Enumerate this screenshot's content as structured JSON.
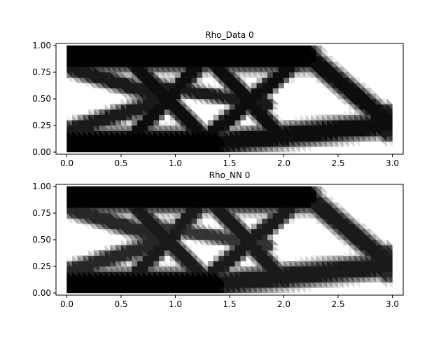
{
  "chart_data": [
    {
      "type": "heatmap",
      "title": "Rho_Data   0",
      "xlabel": "",
      "ylabel": "",
      "xlim": [
        -0.1,
        3.1
      ],
      "ylim": [
        -0.02,
        1.02
      ],
      "xticks": [
        0.0,
        0.5,
        1.0,
        1.5,
        2.0,
        2.5,
        3.0
      ],
      "xtick_labels": [
        "0.0",
        "0.5",
        "1.0",
        "1.5",
        "2.0",
        "2.5",
        "3.0"
      ],
      "yticks": [
        0.0,
        0.25,
        0.5,
        0.75,
        1.0
      ],
      "ytick_labels": [
        "0.00",
        "0.25",
        "0.50",
        "0.75",
        "1.00"
      ],
      "grid": false,
      "colormap": "gray_r",
      "domain": {
        "x": [
          0.0,
          3.0
        ],
        "y": [
          0.0,
          1.0
        ]
      },
      "density_members": [
        {
          "name": "top-chord",
          "from": [
            0.0,
            0.9
          ],
          "to": [
            2.2,
            0.9
          ],
          "width": 0.09,
          "density": 1.0
        },
        {
          "name": "bottom-chord",
          "from": [
            0.0,
            0.08
          ],
          "to": [
            1.35,
            0.08
          ],
          "width": 0.09,
          "density": 1.0
        },
        {
          "name": "bottom-right-chord",
          "from": [
            1.35,
            0.08
          ],
          "to": [
            2.95,
            0.26
          ],
          "width": 0.07,
          "density": 0.95
        },
        {
          "name": "left-top-diagonal",
          "from": [
            0.0,
            0.8
          ],
          "to": [
            0.95,
            0.5
          ],
          "width": 0.05,
          "density": 0.9
        },
        {
          "name": "left-bottom-diagonal",
          "from": [
            0.0,
            0.2
          ],
          "to": [
            0.95,
            0.5
          ],
          "width": 0.05,
          "density": 0.9
        },
        {
          "name": "diag-a",
          "from": [
            0.55,
            0.08
          ],
          "to": [
            1.3,
            0.9
          ],
          "width": 0.05,
          "density": 0.95
        },
        {
          "name": "diag-b",
          "from": [
            0.55,
            0.9
          ],
          "to": [
            1.3,
            0.1
          ],
          "width": 0.05,
          "density": 0.95
        },
        {
          "name": "x-diag-a",
          "from": [
            1.3,
            0.9
          ],
          "to": [
            2.0,
            0.12
          ],
          "width": 0.05,
          "density": 0.95
        },
        {
          "name": "x-diag-b",
          "from": [
            1.25,
            0.1
          ],
          "to": [
            2.2,
            0.92
          ],
          "width": 0.05,
          "density": 0.95
        },
        {
          "name": "cross-mid",
          "from": [
            0.85,
            0.62
          ],
          "to": [
            1.85,
            0.45
          ],
          "width": 0.04,
          "density": 0.9
        },
        {
          "name": "right-outer-diagonal",
          "from": [
            2.2,
            0.92
          ],
          "to": [
            2.95,
            0.3
          ],
          "width": 0.06,
          "density": 0.95
        },
        {
          "name": "right-vertical-end",
          "from": [
            2.95,
            0.18
          ],
          "to": [
            2.95,
            0.38
          ],
          "width": 0.05,
          "density": 0.9
        }
      ]
    },
    {
      "type": "heatmap",
      "title": "Rho_NN   0",
      "xlabel": "",
      "ylabel": "",
      "xlim": [
        -0.1,
        3.1
      ],
      "ylim": [
        -0.02,
        1.02
      ],
      "xticks": [
        0.0,
        0.5,
        1.0,
        1.5,
        2.0,
        2.5,
        3.0
      ],
      "xtick_labels": [
        "0.0",
        "0.5",
        "1.0",
        "1.5",
        "2.0",
        "2.5",
        "3.0"
      ],
      "yticks": [
        0.0,
        0.25,
        0.5,
        0.75,
        1.0
      ],
      "ytick_labels": [
        "0.00",
        "0.25",
        "0.50",
        "0.75",
        "1.00"
      ],
      "grid": false,
      "colormap": "gray_r",
      "domain": {
        "x": [
          0.0,
          3.0
        ],
        "y": [
          0.0,
          1.0
        ]
      },
      "density_members": [
        {
          "name": "top-chord",
          "from": [
            0.0,
            0.9
          ],
          "to": [
            2.2,
            0.9
          ],
          "width": 0.09,
          "density": 1.0
        },
        {
          "name": "bottom-chord",
          "from": [
            0.0,
            0.08
          ],
          "to": [
            1.35,
            0.08
          ],
          "width": 0.09,
          "density": 1.0
        },
        {
          "name": "bottom-right-chord",
          "from": [
            1.35,
            0.08
          ],
          "to": [
            2.95,
            0.26
          ],
          "width": 0.07,
          "density": 0.9
        },
        {
          "name": "left-top-diagonal",
          "from": [
            0.0,
            0.8
          ],
          "to": [
            0.95,
            0.5
          ],
          "width": 0.05,
          "density": 0.85
        },
        {
          "name": "left-bottom-diagonal",
          "from": [
            0.0,
            0.2
          ],
          "to": [
            0.95,
            0.5
          ],
          "width": 0.05,
          "density": 0.85
        },
        {
          "name": "diag-a",
          "from": [
            0.55,
            0.08
          ],
          "to": [
            1.3,
            0.9
          ],
          "width": 0.05,
          "density": 0.9
        },
        {
          "name": "diag-b",
          "from": [
            0.55,
            0.9
          ],
          "to": [
            1.3,
            0.1
          ],
          "width": 0.05,
          "density": 0.9
        },
        {
          "name": "x-diag-a",
          "from": [
            1.3,
            0.9
          ],
          "to": [
            2.0,
            0.12
          ],
          "width": 0.05,
          "density": 0.9
        },
        {
          "name": "x-diag-b",
          "from": [
            1.25,
            0.1
          ],
          "to": [
            2.2,
            0.92
          ],
          "width": 0.05,
          "density": 0.9
        },
        {
          "name": "cross-mid",
          "from": [
            0.85,
            0.62
          ],
          "to": [
            1.85,
            0.45
          ],
          "width": 0.04,
          "density": 0.8
        },
        {
          "name": "right-outer-diagonal",
          "from": [
            2.2,
            0.92
          ],
          "to": [
            2.95,
            0.3
          ],
          "width": 0.06,
          "density": 0.9
        },
        {
          "name": "right-vertical-end",
          "from": [
            2.95,
            0.18
          ],
          "to": [
            2.95,
            0.38
          ],
          "width": 0.05,
          "density": 0.85
        }
      ]
    }
  ]
}
